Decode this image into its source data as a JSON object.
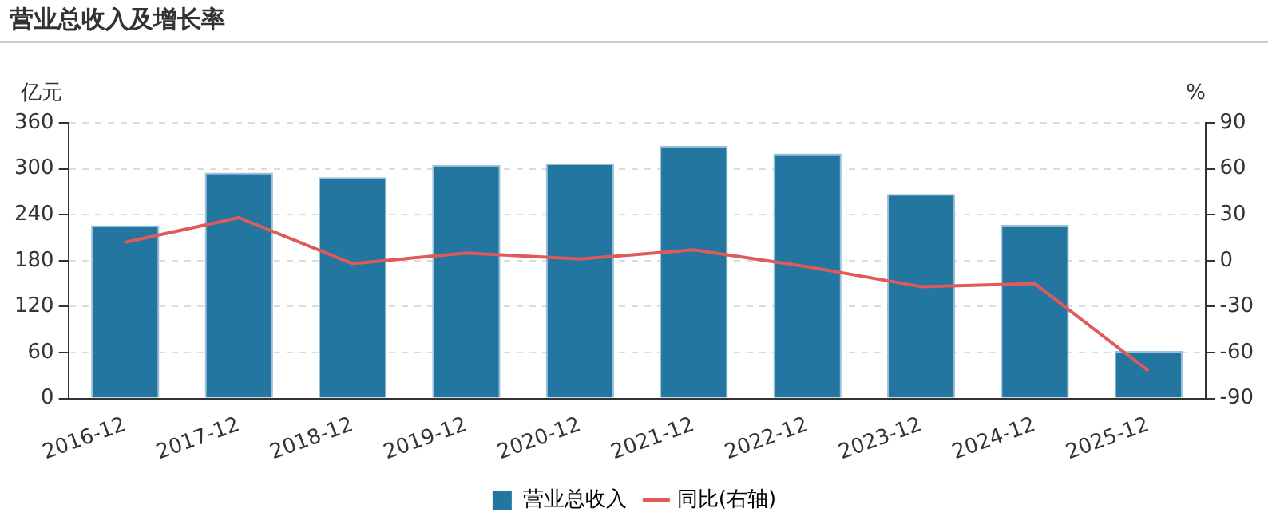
{
  "chart_data": {
    "type": "bar",
    "title": "营业总收入及增长率",
    "ylabel": "亿元",
    "y2label": "%",
    "categories": [
      "2016-12",
      "2017-12",
      "2018-12",
      "2019-12",
      "2020-12",
      "2021-12",
      "2022-12",
      "2023-12",
      "2024-12",
      "2025-12"
    ],
    "series": [
      {
        "name": "营业总收入",
        "color": "#22769f",
        "values": [
          226,
          295,
          289,
          305,
          307,
          330,
          320,
          267,
          227,
          62
        ]
      },
      {
        "name": "同比(右轴)",
        "type": "line",
        "axis": "y2",
        "color": "#e05a5a",
        "marker": "none",
        "values": [
          12,
          28,
          -2,
          5,
          1,
          7,
          -4,
          -17,
          -15,
          -72
        ]
      }
    ],
    "ylim": [
      0,
      360
    ],
    "yticks": [
      0,
      60,
      120,
      180,
      240,
      300,
      360
    ],
    "y2lim": [
      -90,
      90
    ],
    "y2ticks": [
      -90,
      -60,
      -30,
      0,
      30,
      60,
      90
    ],
    "grid": "y",
    "legend": "bottom"
  }
}
